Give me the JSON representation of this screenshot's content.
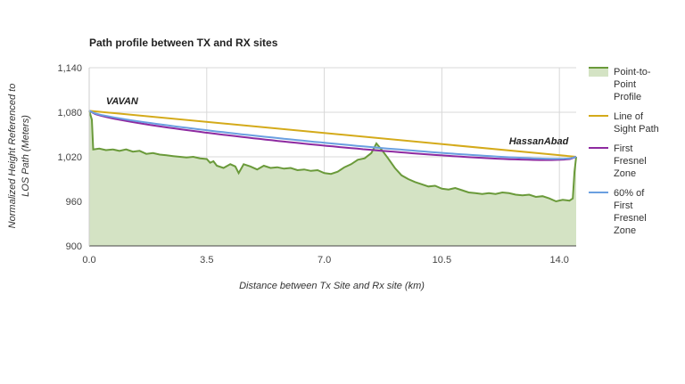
{
  "chart_data": {
    "type": "line",
    "title": "Path profile between TX and RX sites",
    "xlabel": "Distance between Tx Site and Rx site (km)",
    "ylabel": [
      "Normalized Height Referenced to",
      "LOS Path (Meters)"
    ],
    "xlim": [
      0,
      14.5
    ],
    "ylim": [
      900,
      1140
    ],
    "xticks": [
      0,
      3.5,
      7,
      10.5,
      14
    ],
    "xtick_labels": [
      "0.0",
      "3.5",
      "7.0",
      "10.5",
      "14.0"
    ],
    "yticks": [
      900,
      960,
      1020,
      1080,
      1140
    ],
    "ytick_labels": [
      "900",
      "960",
      "1,020",
      "1,080",
      "1,140"
    ],
    "grid": true,
    "legend_position": "right",
    "annotations": [
      {
        "text": "VAVAN",
        "x": 0.5,
        "y": 1091
      },
      {
        "text": "HassanAbad",
        "x": 12.5,
        "y": 1037
      }
    ],
    "series": [
      {
        "name": "Point-to-Point Profile",
        "kind": "area",
        "color": "#6a9a3a",
        "fill": "#d4e3c4",
        "points": [
          [
            0.0,
            1082
          ],
          [
            0.08,
            1070
          ],
          [
            0.12,
            1030
          ],
          [
            0.3,
            1031
          ],
          [
            0.5,
            1029
          ],
          [
            0.7,
            1030
          ],
          [
            0.9,
            1028
          ],
          [
            1.1,
            1030
          ],
          [
            1.3,
            1027
          ],
          [
            1.5,
            1028
          ],
          [
            1.7,
            1024
          ],
          [
            1.9,
            1025
          ],
          [
            2.1,
            1023
          ],
          [
            2.3,
            1022
          ],
          [
            2.5,
            1021
          ],
          [
            2.7,
            1020
          ],
          [
            2.9,
            1019
          ],
          [
            3.1,
            1020
          ],
          [
            3.3,
            1018
          ],
          [
            3.5,
            1017
          ],
          [
            3.6,
            1012
          ],
          [
            3.7,
            1014
          ],
          [
            3.8,
            1008
          ],
          [
            4.0,
            1005
          ],
          [
            4.2,
            1010
          ],
          [
            4.35,
            1007
          ],
          [
            4.45,
            998
          ],
          [
            4.6,
            1010
          ],
          [
            4.8,
            1007
          ],
          [
            5.0,
            1003
          ],
          [
            5.2,
            1008
          ],
          [
            5.4,
            1005
          ],
          [
            5.6,
            1006
          ],
          [
            5.8,
            1004
          ],
          [
            6.0,
            1005
          ],
          [
            6.2,
            1002
          ],
          [
            6.4,
            1003
          ],
          [
            6.6,
            1001
          ],
          [
            6.8,
            1002
          ],
          [
            7.0,
            998
          ],
          [
            7.2,
            997
          ],
          [
            7.4,
            1000
          ],
          [
            7.6,
            1006
          ],
          [
            7.8,
            1010
          ],
          [
            8.0,
            1016
          ],
          [
            8.2,
            1018
          ],
          [
            8.4,
            1025
          ],
          [
            8.55,
            1038
          ],
          [
            8.7,
            1030
          ],
          [
            8.9,
            1018
          ],
          [
            9.1,
            1005
          ],
          [
            9.3,
            995
          ],
          [
            9.5,
            990
          ],
          [
            9.7,
            986
          ],
          [
            9.9,
            983
          ],
          [
            10.1,
            980
          ],
          [
            10.3,
            981
          ],
          [
            10.5,
            977
          ],
          [
            10.7,
            976
          ],
          [
            10.9,
            978
          ],
          [
            11.1,
            975
          ],
          [
            11.3,
            972
          ],
          [
            11.5,
            971
          ],
          [
            11.7,
            970
          ],
          [
            11.9,
            971
          ],
          [
            12.1,
            970
          ],
          [
            12.3,
            972
          ],
          [
            12.5,
            971
          ],
          [
            12.7,
            969
          ],
          [
            12.9,
            968
          ],
          [
            13.1,
            969
          ],
          [
            13.3,
            966
          ],
          [
            13.5,
            967
          ],
          [
            13.7,
            964
          ],
          [
            13.9,
            960
          ],
          [
            14.1,
            962
          ],
          [
            14.3,
            961
          ],
          [
            14.4,
            964
          ],
          [
            14.45,
            1000
          ],
          [
            14.5,
            1020
          ]
        ]
      },
      {
        "name": "Line of Sight Path",
        "kind": "line",
        "color": "#d4aa1a",
        "points": [
          [
            0.0,
            1082
          ],
          [
            14.5,
            1020
          ]
        ]
      },
      {
        "name": "First Fresnel Zone",
        "kind": "fresnel",
        "color": "#8e2aa0",
        "fraction": 1.0,
        "max_clearance": 17
      },
      {
        "name": "60% of First Fresnel Zone",
        "kind": "fresnel",
        "color": "#6a9fe0",
        "fraction": 0.6,
        "max_clearance": 17
      }
    ],
    "legend": [
      {
        "lines": [
          "Point-to-",
          "Point",
          "Profile"
        ],
        "color": "#6a9a3a",
        "style": "area"
      },
      {
        "lines": [
          "Line of",
          "Sight Path"
        ],
        "color": "#d4aa1a",
        "style": "line"
      },
      {
        "lines": [
          "First",
          "Fresnel",
          "Zone"
        ],
        "color": "#8e2aa0",
        "style": "line"
      },
      {
        "lines": [
          "60% of",
          "First",
          "Fresnel",
          "Zone"
        ],
        "color": "#6a9fe0",
        "style": "line"
      }
    ]
  }
}
